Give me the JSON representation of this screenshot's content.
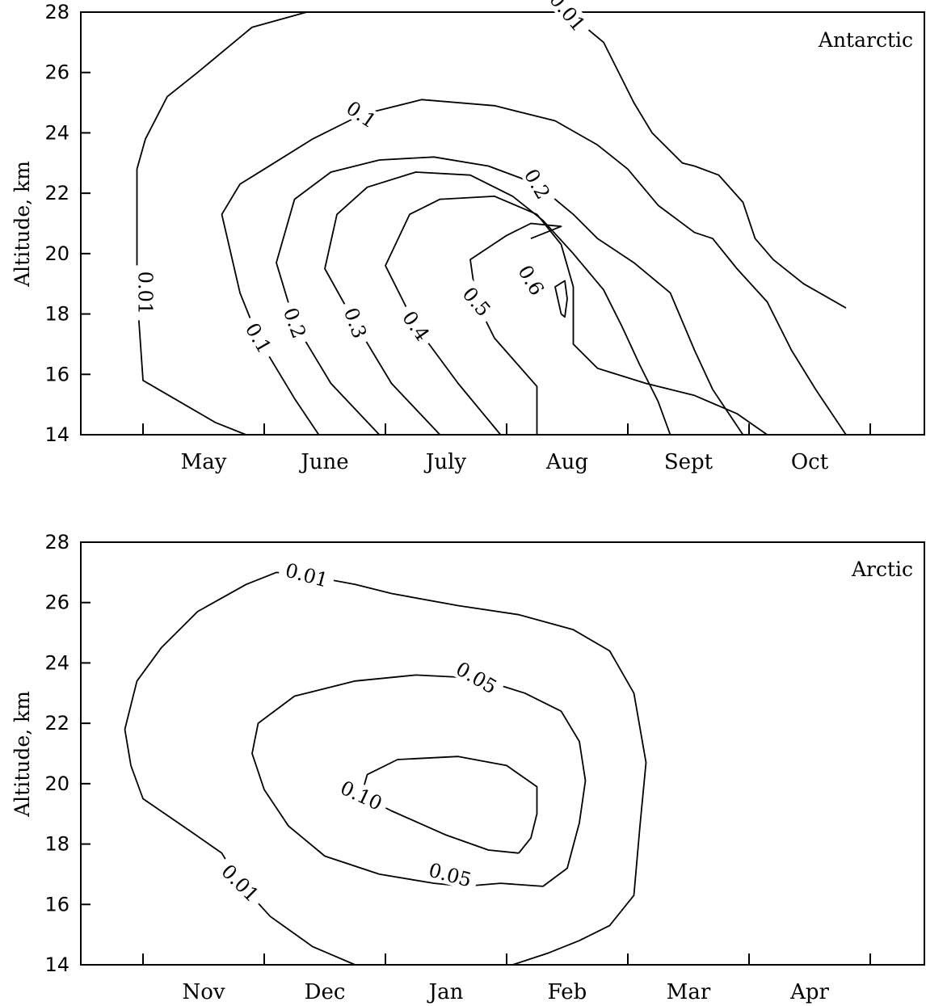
{
  "chart_data": [
    {
      "type": "contour",
      "annotation": "Antarctic",
      "ylabel": "Altitude, km",
      "ylim": [
        14,
        28
      ],
      "yticks": [
        14,
        16,
        18,
        20,
        22,
        24,
        26,
        28
      ],
      "months": [
        "May",
        "June",
        "July",
        "Aug",
        "Sept",
        "Oct"
      ],
      "contours": [
        {
          "level": "0.01",
          "points": [
            [
              0.35,
              14
            ],
            [
              0.1,
              14.4
            ],
            [
              -0.5,
              15.8
            ],
            [
              -0.55,
              18.7
            ],
            [
              -0.55,
              22.8
            ],
            [
              -0.48,
              23.8
            ],
            [
              -0.3,
              25.2
            ],
            [
              -0.05,
              26
            ],
            [
              0.4,
              27.5
            ],
            [
              0.85,
              28
            ],
            [
              3.0,
              28
            ],
            [
              3.3,
              27
            ],
            [
              3.55,
              25
            ],
            [
              3.7,
              24
            ],
            [
              3.95,
              23
            ],
            [
              4.05,
              22.9
            ],
            [
              4.25,
              22.6
            ],
            [
              4.45,
              21.7
            ],
            [
              4.55,
              20.5
            ],
            [
              4.7,
              19.8
            ],
            [
              4.95,
              19
            ],
            [
              5.3,
              18.2
            ]
          ]
        },
        {
          "level": "0.1",
          "points": [
            [
              0.95,
              14
            ],
            [
              0.75,
              15.2
            ],
            [
              0.45,
              17.2
            ],
            [
              0.3,
              18.7
            ],
            [
              0.15,
              21.3
            ],
            [
              0.3,
              22.3
            ],
            [
              0.5,
              22.8
            ],
            [
              0.9,
              23.8
            ],
            [
              1.3,
              24.6
            ],
            [
              1.8,
              25.1
            ],
            [
              2.4,
              24.9
            ],
            [
              2.9,
              24.4
            ],
            [
              3.25,
              23.6
            ],
            [
              3.5,
              22.8
            ],
            [
              3.75,
              21.6
            ],
            [
              4.05,
              20.7
            ],
            [
              4.2,
              20.5
            ],
            [
              4.4,
              19.5
            ],
            [
              4.65,
              18.4
            ],
            [
              4.85,
              16.8
            ],
            [
              5.05,
              15.5
            ],
            [
              5.3,
              14
            ]
          ]
        },
        {
          "level": "0.2",
          "points": [
            [
              1.45,
              14
            ],
            [
              1.05,
              15.7
            ],
            [
              0.75,
              17.7
            ],
            [
              0.6,
              19.7
            ],
            [
              0.75,
              21.8
            ],
            [
              1.05,
              22.7
            ],
            [
              1.45,
              23.1
            ],
            [
              1.9,
              23.2
            ],
            [
              2.35,
              22.9
            ],
            [
              2.75,
              22.3
            ],
            [
              3.05,
              21.3
            ],
            [
              3.25,
              20.5
            ],
            [
              3.55,
              19.7
            ],
            [
              3.85,
              18.7
            ],
            [
              4.05,
              16.8
            ],
            [
              4.2,
              15.5
            ],
            [
              4.45,
              14
            ]
          ]
        },
        {
          "level": "0.3",
          "points": [
            [
              1.95,
              14
            ],
            [
              1.55,
              15.7
            ],
            [
              1.25,
              17.7
            ],
            [
              1.0,
              19.5
            ],
            [
              1.1,
              21.3
            ],
            [
              1.35,
              22.2
            ],
            [
              1.75,
              22.7
            ],
            [
              2.2,
              22.6
            ],
            [
              2.55,
              21.9
            ],
            [
              2.8,
              21.1
            ],
            [
              3.05,
              20
            ],
            [
              3.3,
              18.8
            ],
            [
              3.45,
              17.6
            ],
            [
              3.6,
              16.3
            ],
            [
              3.75,
              15.1
            ],
            [
              3.85,
              14
            ]
          ]
        },
        {
          "level": "0.4",
          "points": [
            [
              2.45,
              14
            ],
            [
              2.1,
              15.7
            ],
            [
              1.75,
              17.6
            ],
            [
              1.5,
              19.6
            ],
            [
              1.7,
              21.3
            ],
            [
              1.95,
              21.8
            ],
            [
              2.4,
              21.9
            ],
            [
              2.75,
              21.3
            ],
            [
              2.95,
              20.3
            ],
            [
              3.05,
              18.9
            ],
            [
              3.05,
              17
            ],
            [
              3.25,
              16.2
            ],
            [
              3.65,
              15.7
            ],
            [
              4.05,
              15.3
            ],
            [
              4.4,
              14.7
            ],
            [
              4.65,
              14
            ]
          ]
        },
        {
          "level": "0.5",
          "points": [
            [
              2.75,
              14
            ],
            [
              2.75,
              15.6
            ],
            [
              2.4,
              17.2
            ],
            [
              2.25,
              18.4
            ],
            [
              2.2,
              19.8
            ],
            [
              2.5,
              20.6
            ],
            [
              2.7,
              21
            ],
            [
              2.95,
              20.9
            ],
            [
              2.7,
              20.5
            ]
          ]
        },
        {
          "level": "0.6",
          "points": [
            [
              2.95,
              18
            ],
            [
              2.9,
              18.9
            ],
            [
              2.98,
              19.1
            ],
            [
              3.0,
              18.5
            ],
            [
              2.98,
              17.9
            ],
            [
              2.95,
              18
            ]
          ]
        }
      ]
    },
    {
      "type": "contour",
      "annotation": "Arctic",
      "ylabel": "Altitude, km",
      "ylim": [
        14,
        28
      ],
      "yticks": [
        14,
        16,
        18,
        20,
        22,
        24,
        26,
        28
      ],
      "months": [
        "Nov",
        "Dec",
        "Jan",
        "Feb",
        "Mar",
        "Apr"
      ],
      "contours": [
        {
          "level": "0.01",
          "points": [
            [
              1.25,
              14
            ],
            [
              0.9,
              14.6
            ],
            [
              0.55,
              15.6
            ],
            [
              0.3,
              16.7
            ],
            [
              0.15,
              17.7
            ],
            [
              -0.1,
              18.4
            ],
            [
              -0.5,
              19.5
            ],
            [
              -0.6,
              20.6
            ],
            [
              -0.65,
              21.8
            ],
            [
              -0.55,
              23.4
            ],
            [
              -0.35,
              24.5
            ],
            [
              -0.05,
              25.7
            ],
            [
              0.35,
              26.6
            ],
            [
              0.6,
              27
            ],
            [
              0.85,
              26.9
            ],
            [
              1.25,
              26.6
            ],
            [
              1.55,
              26.3
            ],
            [
              2.1,
              25.9
            ],
            [
              2.6,
              25.6
            ],
            [
              3.05,
              25.1
            ],
            [
              3.35,
              24.4
            ],
            [
              3.55,
              23
            ],
            [
              3.65,
              20.7
            ],
            [
              3.6,
              18.6
            ],
            [
              3.55,
              16.3
            ],
            [
              3.35,
              15.3
            ],
            [
              3.1,
              14.8
            ],
            [
              2.85,
              14.4
            ],
            [
              2.55,
              14
            ]
          ]
        },
        {
          "level": "0.05",
          "points": [
            [
              2.45,
              16.7
            ],
            [
              2.15,
              16.6
            ],
            [
              1.9,
              16.7
            ],
            [
              1.45,
              17
            ],
            [
              1.0,
              17.6
            ],
            [
              0.7,
              18.6
            ],
            [
              0.5,
              19.8
            ],
            [
              0.4,
              21
            ],
            [
              0.45,
              22
            ],
            [
              0.75,
              22.9
            ],
            [
              1.25,
              23.4
            ],
            [
              1.75,
              23.6
            ],
            [
              2.25,
              23.5
            ],
            [
              2.65,
              23
            ],
            [
              2.95,
              22.4
            ],
            [
              3.1,
              21.4
            ],
            [
              3.15,
              20.1
            ],
            [
              3.1,
              18.7
            ],
            [
              3.0,
              17.2
            ],
            [
              2.8,
              16.6
            ],
            [
              2.45,
              16.7
            ]
          ]
        },
        {
          "level": "0.10",
          "points": [
            [
              2.6,
              17.7
            ],
            [
              2.35,
              17.8
            ],
            [
              2.0,
              18.3
            ],
            [
              1.55,
              19.1
            ],
            [
              1.3,
              19.6
            ],
            [
              1.35,
              20.3
            ],
            [
              1.6,
              20.8
            ],
            [
              2.1,
              20.9
            ],
            [
              2.5,
              20.6
            ],
            [
              2.75,
              19.9
            ],
            [
              2.75,
              19
            ],
            [
              2.7,
              18.2
            ],
            [
              2.6,
              17.7
            ]
          ]
        }
      ]
    }
  ]
}
